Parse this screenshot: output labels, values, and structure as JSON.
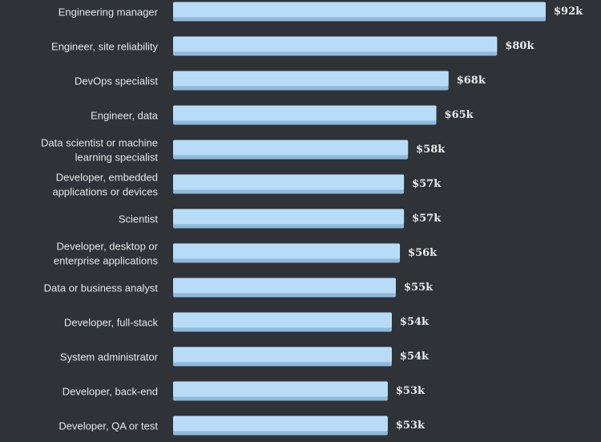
{
  "colors": {
    "background": "#2f3237",
    "bar": "#b8dcf7",
    "bar_shade": "#8fb9dc",
    "label_text": "#e6e6e6"
  },
  "chart_data": {
    "type": "bar",
    "orientation": "horizontal",
    "title": "",
    "xlabel": "",
    "ylabel": "",
    "grid": false,
    "value_prefix": "$",
    "value_suffix": "k",
    "xlim": [
      0,
      92
    ],
    "categories": [
      [
        "Engineering manager"
      ],
      [
        "Engineer, site reliability"
      ],
      [
        "DevOps specialist"
      ],
      [
        "Engineer, data"
      ],
      [
        "Data scientist or machine",
        "learning specialist"
      ],
      [
        "Developer, embedded",
        "applications or devices"
      ],
      [
        "Scientist"
      ],
      [
        "Developer, desktop or",
        "enterprise applications"
      ],
      [
        "Data or business analyst"
      ],
      [
        "Developer, full-stack"
      ],
      [
        "System administrator"
      ],
      [
        "Developer, back-end"
      ],
      [
        "Developer, QA or test"
      ]
    ],
    "values": [
      92,
      80,
      68,
      65,
      58,
      57,
      57,
      56,
      55,
      54,
      54,
      53,
      53
    ],
    "value_labels": [
      "$92k",
      "$80k",
      "$68k",
      "$65k",
      "$58k",
      "$57k",
      "$57k",
      "$56k",
      "$55k",
      "$54k",
      "$54k",
      "$53k",
      "$53k"
    ]
  }
}
